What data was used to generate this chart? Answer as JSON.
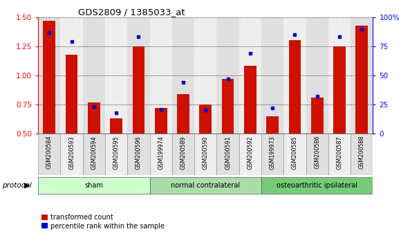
{
  "title": "GDS2809 / 1385033_at",
  "samples": [
    "GSM200584",
    "GSM200593",
    "GSM200594",
    "GSM200595",
    "GSM200596",
    "GSM199974",
    "GSM200589",
    "GSM200590",
    "GSM200591",
    "GSM200592",
    "GSM199973",
    "GSM200585",
    "GSM200586",
    "GSM200587",
    "GSM200588"
  ],
  "red_values": [
    1.47,
    1.18,
    0.77,
    0.63,
    1.25,
    0.72,
    0.84,
    0.75,
    0.97,
    1.08,
    0.65,
    1.3,
    0.81,
    1.25,
    1.43
  ],
  "blue_values": [
    87,
    79,
    23,
    18,
    83,
    21,
    44,
    20,
    47,
    69,
    22,
    85,
    32,
    83,
    90
  ],
  "ylim_left": [
    0.5,
    1.5
  ],
  "ylim_right": [
    0,
    100
  ],
  "yticks_left": [
    0.5,
    0.75,
    1.0,
    1.25,
    1.5
  ],
  "yticks_right": [
    0,
    25,
    50,
    75,
    100
  ],
  "ytick_labels_right": [
    "0",
    "25",
    "50",
    "75",
    "100%"
  ],
  "groups": [
    {
      "label": "sham",
      "start": 0,
      "end": 5
    },
    {
      "label": "normal contralateral",
      "start": 5,
      "end": 10
    },
    {
      "label": "osteoarthritic ipsilateral",
      "start": 10,
      "end": 15
    }
  ],
  "group_colors": [
    "#ccffcc",
    "#aaddaa",
    "#77cc77"
  ],
  "bar_color": "#cc1100",
  "dot_color": "#0000cc",
  "bar_width": 0.55,
  "background_color": "#ffffff",
  "plot_bg_color": "#ffffff",
  "col_bg_even": "#e0e0e0",
  "col_bg_odd": "#eeeeee",
  "legend_red": "transformed count",
  "legend_blue": "percentile rank within the sample",
  "protocol_label": "protocol"
}
